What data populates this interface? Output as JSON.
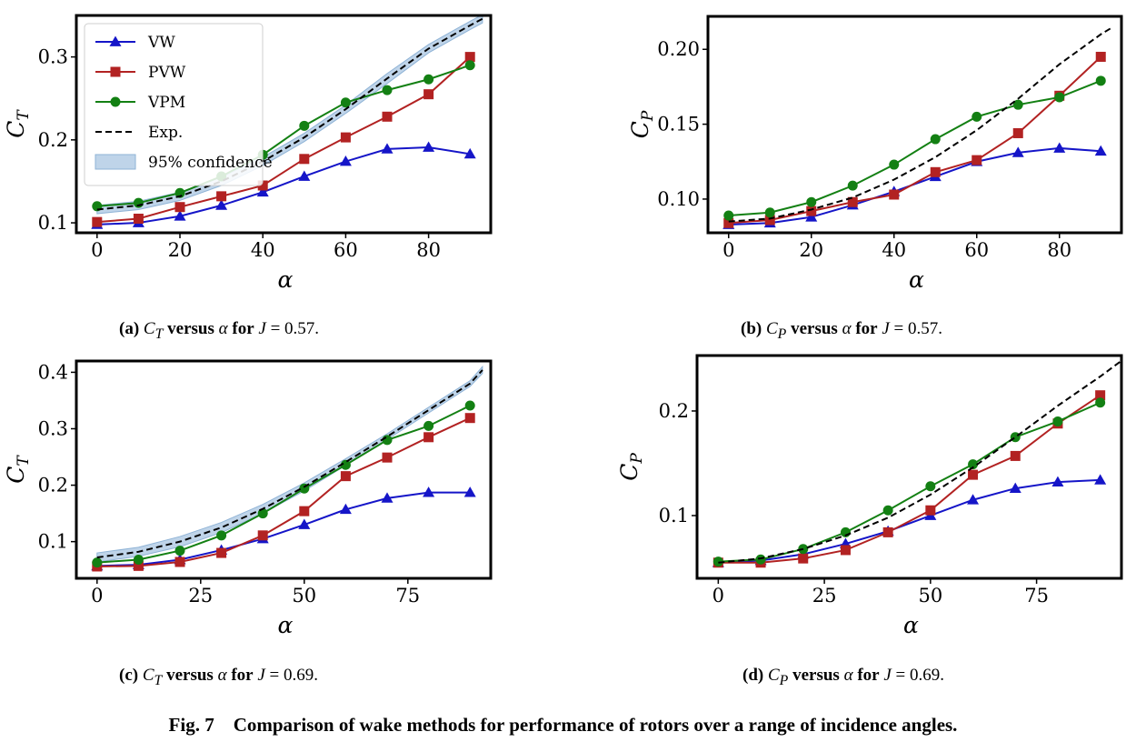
{
  "figure": {
    "caption_label": "Fig. 7",
    "caption_text": "Comparison of wake methods for performance of rotors over a range of incidence angles."
  },
  "colors": {
    "VW": "#1515c8",
    "PVW": "#b22222",
    "VPM": "#138013",
    "Exp.": "#000000",
    "confidence": "#a9c6e2"
  },
  "chart_data": [
    {
      "type": "line",
      "subplot": "(a)",
      "caption": {
        "label": "(a)",
        "var": "C",
        "sub": "T",
        "mid": "versus",
        "alpha": "α",
        "for": "for",
        "J": "J",
        "eq": " = 0.57."
      },
      "xlabel": "α",
      "ylabel": "C",
      "ylabel_sub": "T",
      "xlim": [
        -5,
        95
      ],
      "ylim": [
        0.088,
        0.35
      ],
      "xticks": [
        0,
        20,
        40,
        60,
        80
      ],
      "xtick_labels": [
        "0",
        "20",
        "40",
        "60",
        "80"
      ],
      "yticks": [
        0.1,
        0.2,
        0.3
      ],
      "ytick_labels": [
        "0.1",
        "0.2",
        "0.3"
      ],
      "legend": {
        "position": "top-left",
        "entries": [
          "VW",
          "PVW",
          "VPM",
          "Exp.",
          "95% confidence"
        ]
      },
      "x": [
        0,
        10,
        20,
        30,
        40,
        50,
        60,
        70,
        80,
        90
      ],
      "series": [
        {
          "name": "VW",
          "marker": "triangle",
          "values": [
            0.098,
            0.1,
            0.108,
            0.121,
            0.137,
            0.156,
            0.174,
            0.189,
            0.191,
            0.183
          ]
        },
        {
          "name": "PVW",
          "marker": "square",
          "values": [
            0.101,
            0.105,
            0.119,
            0.132,
            0.145,
            0.177,
            0.203,
            0.228,
            0.255,
            0.3
          ]
        },
        {
          "name": "VPM",
          "marker": "circle",
          "values": [
            0.12,
            0.124,
            0.136,
            0.156,
            0.182,
            0.217,
            0.245,
            0.26,
            0.273,
            0.29
          ]
        },
        {
          "name": "Exp.",
          "marker": "none",
          "dashed": true,
          "x": [
            0,
            10,
            20,
            30,
            40,
            50,
            60,
            70,
            80,
            90,
            93
          ],
          "values": [
            0.116,
            0.121,
            0.132,
            0.15,
            0.174,
            0.203,
            0.237,
            0.274,
            0.31,
            0.338,
            0.346
          ]
        },
        {
          "name": "95% confidence",
          "band": true,
          "x": [
            0,
            10,
            20,
            30,
            40,
            50,
            60,
            70,
            80,
            90,
            93
          ],
          "lower": [
            0.111,
            0.116,
            0.127,
            0.145,
            0.169,
            0.198,
            0.232,
            0.268,
            0.305,
            0.333,
            0.341
          ],
          "upper": [
            0.121,
            0.126,
            0.137,
            0.155,
            0.179,
            0.208,
            0.242,
            0.28,
            0.315,
            0.343,
            0.351
          ]
        }
      ]
    },
    {
      "type": "line",
      "subplot": "(b)",
      "caption": {
        "label": "(b)",
        "var": "C",
        "sub": "P",
        "mid": "versus",
        "alpha": "α",
        "for": "for",
        "J": "J",
        "eq": " = 0.57."
      },
      "xlabel": "α",
      "ylabel": "C",
      "ylabel_sub": "P",
      "xlim": [
        -5,
        95
      ],
      "ylim": [
        0.0775,
        0.222
      ],
      "xticks": [
        0,
        20,
        40,
        60,
        80
      ],
      "xtick_labels": [
        "0",
        "20",
        "40",
        "60",
        "80"
      ],
      "yticks": [
        0.1,
        0.15,
        0.2
      ],
      "ytick_labels": [
        "0.10",
        "0.15",
        "0.20"
      ],
      "x": [
        0,
        10,
        20,
        30,
        40,
        50,
        60,
        70,
        80,
        90
      ],
      "series": [
        {
          "name": "VW",
          "marker": "triangle",
          "values": [
            0.083,
            0.084,
            0.088,
            0.096,
            0.105,
            0.115,
            0.125,
            0.131,
            0.134,
            0.132
          ]
        },
        {
          "name": "PVW",
          "marker": "square",
          "values": [
            0.084,
            0.086,
            0.092,
            0.098,
            0.103,
            0.118,
            0.126,
            0.144,
            0.169,
            0.195
          ]
        },
        {
          "name": "VPM",
          "marker": "circle",
          "values": [
            0.089,
            0.091,
            0.098,
            0.109,
            0.123,
            0.14,
            0.155,
            0.163,
            0.168,
            0.179
          ]
        },
        {
          "name": "Exp.",
          "marker": "none",
          "dashed": true,
          "x": [
            0,
            10,
            20,
            30,
            40,
            50,
            60,
            70,
            80,
            90,
            93
          ],
          "values": [
            0.085,
            0.087,
            0.093,
            0.101,
            0.113,
            0.128,
            0.146,
            0.167,
            0.19,
            0.21,
            0.215
          ]
        }
      ]
    },
    {
      "type": "line",
      "subplot": "(c)",
      "caption": {
        "label": "(c)",
        "var": "C",
        "sub": "T",
        "mid": "versus",
        "alpha": "α",
        "for": "for",
        "J": "J",
        "eq": " = 0.69."
      },
      "xlabel": "α",
      "ylabel": "C",
      "ylabel_sub": "T",
      "xlim": [
        -5,
        95
      ],
      "ylim": [
        0.035,
        0.42
      ],
      "xticks": [
        0,
        25,
        50,
        75
      ],
      "xtick_labels": [
        "0",
        "25",
        "50",
        "75"
      ],
      "yticks": [
        0.1,
        0.2,
        0.3,
        0.4
      ],
      "ytick_labels": [
        "0.1",
        "0.2",
        "0.3",
        "0.4"
      ],
      "x": [
        0,
        10,
        20,
        30,
        40,
        50,
        60,
        70,
        80,
        90
      ],
      "series": [
        {
          "name": "VW",
          "marker": "triangle",
          "values": [
            0.057,
            0.059,
            0.068,
            0.085,
            0.105,
            0.13,
            0.157,
            0.177,
            0.187,
            0.187
          ]
        },
        {
          "name": "PVW",
          "marker": "square",
          "values": [
            0.056,
            0.057,
            0.064,
            0.08,
            0.111,
            0.154,
            0.216,
            0.249,
            0.285,
            0.319
          ]
        },
        {
          "name": "VPM",
          "marker": "circle",
          "values": [
            0.063,
            0.068,
            0.084,
            0.111,
            0.15,
            0.194,
            0.236,
            0.28,
            0.305,
            0.341
          ]
        },
        {
          "name": "Exp.",
          "marker": "none",
          "dashed": true,
          "x": [
            0,
            10,
            20,
            30,
            40,
            50,
            60,
            70,
            80,
            90,
            93
          ],
          "values": [
            0.072,
            0.082,
            0.1,
            0.125,
            0.158,
            0.197,
            0.241,
            0.286,
            0.333,
            0.38,
            0.404
          ]
        },
        {
          "name": "95% confidence",
          "band": true,
          "x": [
            0,
            10,
            20,
            30,
            40,
            50,
            60,
            70,
            80,
            90,
            93
          ],
          "lower": [
            0.064,
            0.074,
            0.091,
            0.116,
            0.15,
            0.19,
            0.235,
            0.281,
            0.328,
            0.375,
            0.398
          ],
          "upper": [
            0.08,
            0.09,
            0.109,
            0.134,
            0.166,
            0.204,
            0.247,
            0.291,
            0.338,
            0.385,
            0.41
          ]
        }
      ]
    },
    {
      "type": "line",
      "subplot": "(d)",
      "caption": {
        "label": "(d)",
        "var": "C",
        "sub": "P",
        "mid": "versus",
        "alpha": "α",
        "for": "for",
        "J": "J",
        "eq": " = 0.69."
      },
      "xlabel": "α",
      "ylabel": "C",
      "ylabel_sub": "P",
      "xlim": [
        -5,
        95
      ],
      "ylim": [
        0.04,
        0.253
      ],
      "xticks": [
        0,
        25,
        50,
        75
      ],
      "xtick_labels": [
        "0",
        "25",
        "50",
        "75"
      ],
      "yticks": [
        0.1,
        0.2
      ],
      "ytick_labels": [
        "0.1",
        "0.2"
      ],
      "x": [
        0,
        10,
        20,
        30,
        40,
        50,
        60,
        70,
        80,
        90
      ],
      "series": [
        {
          "name": "VW",
          "marker": "triangle",
          "values": [
            0.055,
            0.057,
            0.063,
            0.073,
            0.085,
            0.1,
            0.115,
            0.126,
            0.132,
            0.134
          ]
        },
        {
          "name": "PVW",
          "marker": "square",
          "values": [
            0.055,
            0.055,
            0.059,
            0.067,
            0.084,
            0.105,
            0.139,
            0.157,
            0.188,
            0.215
          ]
        },
        {
          "name": "VPM",
          "marker": "circle",
          "values": [
            0.056,
            0.058,
            0.068,
            0.084,
            0.105,
            0.128,
            0.149,
            0.175,
            0.19,
            0.208
          ]
        },
        {
          "name": "Exp.",
          "marker": "none",
          "dashed": true,
          "x": [
            0,
            10,
            20,
            30,
            40,
            50,
            60,
            70,
            80,
            90,
            95
          ],
          "values": [
            0.055,
            0.059,
            0.068,
            0.081,
            0.098,
            0.12,
            0.146,
            0.175,
            0.205,
            0.233,
            0.248
          ]
        }
      ]
    }
  ]
}
